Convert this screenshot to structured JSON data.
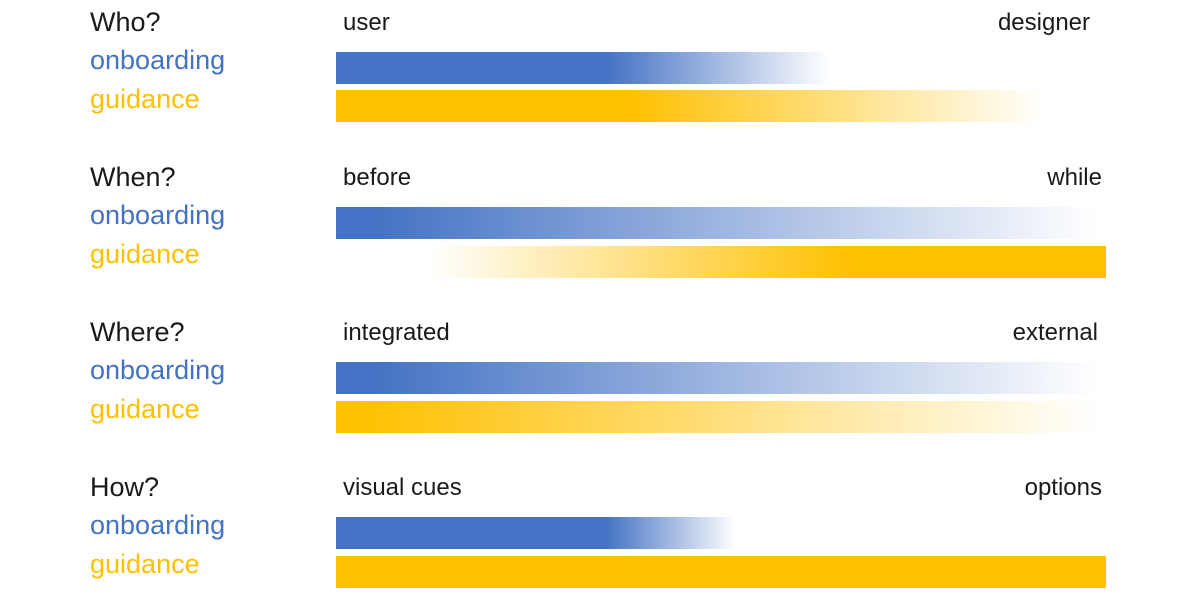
{
  "colors": {
    "onboarding": "#4472C4",
    "guidance": "#FFC000",
    "text": "#1a1a1a"
  },
  "dimensions": [
    {
      "question": "Who?",
      "onboarding_label": "onboarding",
      "guidance_label": "guidance",
      "left_end": "user",
      "right_end": "designer",
      "onboarding_bar": {
        "solid_from": 0.0,
        "solid_to": 0.35,
        "fade_to": 0.64,
        "start": 0.0,
        "end": 0.64,
        "direction": "fade-right"
      },
      "guidance_bar": {
        "solid_from": 0.0,
        "solid_to": 0.38,
        "fade_to": 0.92,
        "start": 0.0,
        "end": 0.92,
        "direction": "fade-right"
      }
    },
    {
      "question": "When?",
      "onboarding_label": "onboarding",
      "guidance_label": "guidance",
      "left_end": "before",
      "right_end": "while",
      "onboarding_bar": {
        "solid_from": 0.0,
        "solid_to": 0.05,
        "fade_to": 0.99,
        "start": 0.0,
        "end": 0.99,
        "direction": "fade-right"
      },
      "guidance_bar": {
        "solid_from": 0.67,
        "solid_to": 1.0,
        "fade_to": 0.12,
        "start": 0.0,
        "end": 1.0,
        "direction": "fade-left"
      }
    },
    {
      "question": "Where?",
      "onboarding_label": "onboarding",
      "guidance_label": "guidance",
      "left_end": "integrated",
      "right_end": "external",
      "onboarding_bar": {
        "solid_from": 0.0,
        "solid_to": 0.05,
        "fade_to": 0.99,
        "start": 0.0,
        "end": 0.99,
        "direction": "fade-right"
      },
      "guidance_bar": {
        "solid_from": 0.0,
        "solid_to": 0.03,
        "fade_to": 0.99,
        "start": 0.0,
        "end": 0.99,
        "direction": "fade-right"
      }
    },
    {
      "question": "How?",
      "onboarding_label": "onboarding",
      "guidance_label": "guidance",
      "left_end": "visual cues",
      "right_end": "options",
      "onboarding_bar": {
        "solid_from": 0.0,
        "solid_to": 0.35,
        "fade_to": 0.52,
        "start": 0.0,
        "end": 0.52,
        "direction": "fade-right"
      },
      "guidance_bar": {
        "solid_from": 0.0,
        "solid_to": 1.0,
        "fade_to": 1.0,
        "start": 0.0,
        "end": 1.0,
        "direction": "solid"
      }
    }
  ]
}
